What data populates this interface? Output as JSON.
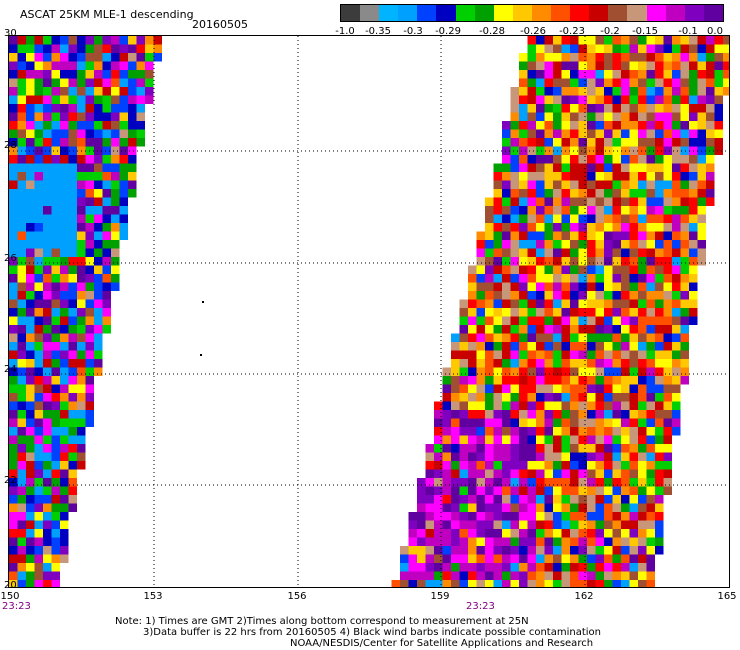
{
  "title": "ASCAT 25KM MLE-1 descending",
  "date": "20160505",
  "colorbar": {
    "colors": [
      "#3c3c3c",
      "#8a8a8a",
      "#00b4ff",
      "#00a0ff",
      "#0040ff",
      "#0000c0",
      "#00d000",
      "#00a000",
      "#ffff00",
      "#ffc800",
      "#ff8c00",
      "#ff5000",
      "#ff0000",
      "#c80000",
      "#a05030",
      "#c89678",
      "#ff00ff",
      "#c000c0",
      "#8000c0",
      "#6000a0"
    ],
    "labels": [
      "-1.0",
      "-0.35",
      "-0.3",
      "-0.29",
      "-0.28",
      "-0.26",
      "-0.23",
      "-0.2",
      "-0.15",
      "-0.1",
      "0.0"
    ]
  },
  "axes": {
    "lat_labels": [
      "30",
      "28",
      "26",
      "24",
      "22",
      "20"
    ],
    "lon_labels": [
      "150",
      "153",
      "156",
      "159",
      "162",
      "165"
    ]
  },
  "times": [
    "23:23",
    "23:23"
  ],
  "notes": [
    "Note: 1) Times are GMT 2)Times along bottom correspond to measurement at 25N",
    "3)Data buffer is 22 hrs from 20160505 4) Black wind barbs indicate possible contamination",
    "NOAA/NESDIS/Center for Satellite Applications and Research"
  ]
}
